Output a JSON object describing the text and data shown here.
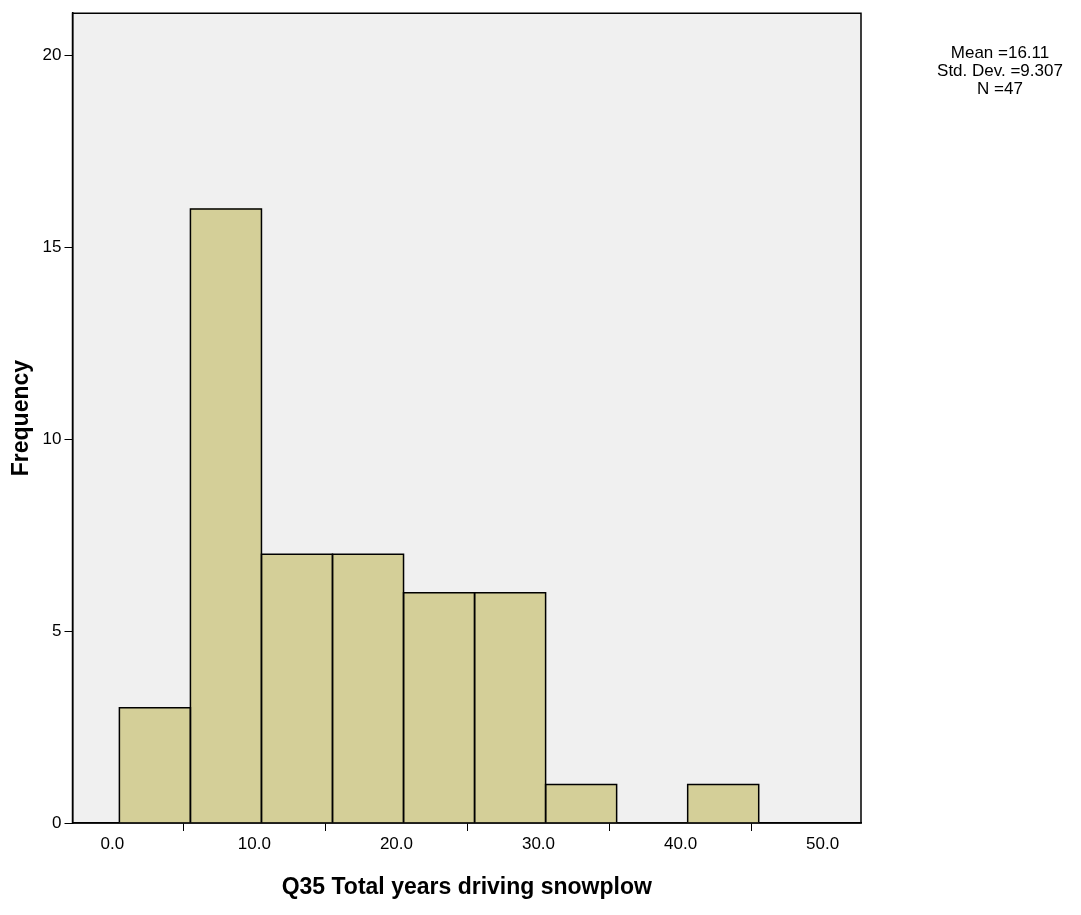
{
  "chart_data": {
    "type": "histogram",
    "xlabel": "Q35 Total years driving snowplow",
    "ylabel": "Frequency",
    "bins": [
      0.5,
      5.5,
      10.5,
      15.5,
      20.5,
      25.5,
      30.5,
      35.5,
      40.5,
      45.5
    ],
    "values": [
      3,
      16,
      7,
      7,
      6,
      6,
      1,
      0,
      1
    ],
    "color": "#d4cf98",
    "xlim": [
      -2.8,
      52.7
    ],
    "ylim": [
      0,
      21.1
    ],
    "xticks": [
      {
        "value": 0,
        "label": "0.0"
      },
      {
        "value": 10,
        "label": "10.0"
      },
      {
        "value": 20,
        "label": "20.0"
      },
      {
        "value": 30,
        "label": "30.0"
      },
      {
        "value": 40,
        "label": "40.0"
      },
      {
        "value": 50,
        "label": "50.0"
      }
    ],
    "yticks": [
      0,
      5,
      10,
      15,
      20
    ],
    "annotations": [
      "Mean =16.11",
      "Std. Dev. =9.307",
      "N =47"
    ]
  }
}
